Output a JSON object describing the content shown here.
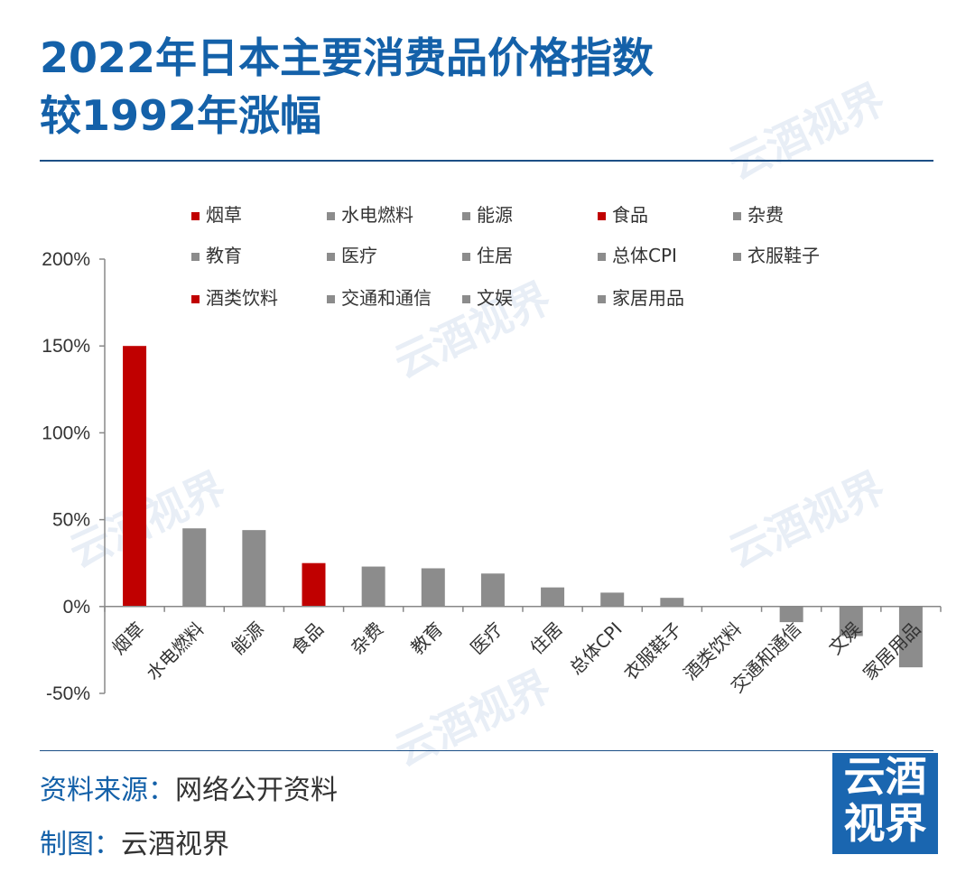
{
  "header": {
    "title_line1": "2022年日本主要消费品价格指数",
    "title_line2": "较1992年涨幅"
  },
  "footer": {
    "source_label": "资料来源：",
    "source_value": "网络公开资料",
    "credit_label": "制图：",
    "credit_value": "云酒视界"
  },
  "logo": {
    "line1": "云酒",
    "line2": "视界"
  },
  "watermark": "云酒视界",
  "colors": {
    "accent": "#1461a9",
    "highlight": "#c00000",
    "other": "#8c8c8c"
  },
  "chart_data": {
    "type": "bar",
    "title": "2022年日本主要消费品价格指数较1992年涨幅",
    "categories": [
      "烟草",
      "水电燃料",
      "能源",
      "食品",
      "杂费",
      "教育",
      "医疗",
      "住居",
      "总体CPI",
      "衣服鞋子",
      "酒类饮料",
      "交通和通信",
      "文娱",
      "家居用品"
    ],
    "values": [
      150,
      45,
      44,
      25,
      23,
      22,
      19,
      11,
      8,
      5,
      0,
      -9,
      -17,
      -35
    ],
    "highlight": [
      true,
      false,
      false,
      true,
      false,
      false,
      false,
      false,
      false,
      false,
      true,
      false,
      false,
      false
    ],
    "ylim": [
      -50,
      200
    ],
    "yticks": [
      200,
      150,
      100,
      50,
      0,
      -50
    ],
    "ytick_labels": [
      "200%",
      "150%",
      "100%",
      "50%",
      "0%",
      "-50%"
    ],
    "xlabel": "",
    "ylabel": "",
    "legend": [
      "烟草",
      "水电燃料",
      "能源",
      "食品",
      "杂费",
      "教育",
      "医疗",
      "住居",
      "总体CPI",
      "衣服鞋子",
      "酒类饮料",
      "交通和通信",
      "文娱",
      "家居用品"
    ]
  }
}
